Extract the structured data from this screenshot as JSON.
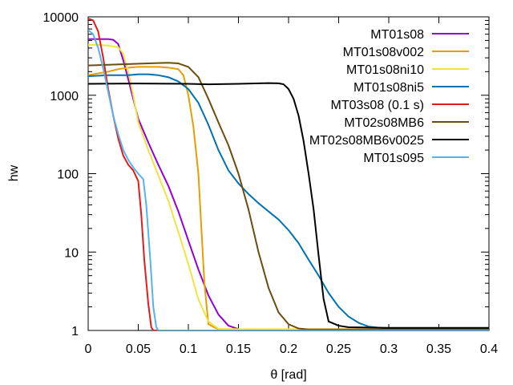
{
  "chart_data": {
    "type": "line",
    "title": "",
    "xlabel": "θ [rad]",
    "ylabel": "hw",
    "xlim": [
      0,
      0.4
    ],
    "ylim": [
      1,
      10000
    ],
    "yscale": "log",
    "grid": false,
    "legend_position": "top-right",
    "x_ticks": [
      0,
      0.05,
      0.1,
      0.15,
      0.2,
      0.25,
      0.3,
      0.35,
      0.4
    ],
    "x_tick_labels": [
      "0",
      "0.05",
      "0.1",
      "0.15",
      "0.2",
      "0.25",
      "0.3",
      "0.35",
      "0.4"
    ],
    "y_ticks": [
      1,
      10,
      100,
      1000,
      10000
    ],
    "y_tick_labels": [
      "1",
      "10",
      "100",
      "1000",
      "10000"
    ],
    "series": [
      {
        "name": "MT01s08",
        "color": "#9400d3",
        "points": [
          [
            0,
            5200
          ],
          [
            0.01,
            5200
          ],
          [
            0.02,
            5200
          ],
          [
            0.025,
            5100
          ],
          [
            0.03,
            4500
          ],
          [
            0.035,
            2800
          ],
          [
            0.04,
            1600
          ],
          [
            0.045,
            900
          ],
          [
            0.05,
            500
          ],
          [
            0.06,
            250
          ],
          [
            0.07,
            130
          ],
          [
            0.08,
            70
          ],
          [
            0.09,
            33
          ],
          [
            0.1,
            14
          ],
          [
            0.11,
            6
          ],
          [
            0.12,
            2.8
          ],
          [
            0.13,
            1.6
          ],
          [
            0.14,
            1.15
          ],
          [
            0.15,
            1.04
          ],
          [
            0.2,
            1.03
          ],
          [
            0.4,
            1.03
          ]
        ]
      },
      {
        "name": "MT01s08v002",
        "color": "#e69f00",
        "points": [
          [
            0,
            1800
          ],
          [
            0.01,
            1900
          ],
          [
            0.02,
            2000
          ],
          [
            0.03,
            2150
          ],
          [
            0.04,
            2250
          ],
          [
            0.05,
            2300
          ],
          [
            0.06,
            2300
          ],
          [
            0.07,
            2300
          ],
          [
            0.08,
            2250
          ],
          [
            0.09,
            2150
          ],
          [
            0.095,
            1800
          ],
          [
            0.1,
            1000
          ],
          [
            0.105,
            400
          ],
          [
            0.11,
            100
          ],
          [
            0.113,
            20
          ],
          [
            0.116,
            4
          ],
          [
            0.12,
            1.2
          ],
          [
            0.13,
            1.03
          ],
          [
            0.4,
            1.03
          ]
        ]
      },
      {
        "name": "MT01s08ni10",
        "color": "#f0e442",
        "points": [
          [
            0,
            4400
          ],
          [
            0.01,
            4400
          ],
          [
            0.02,
            4300
          ],
          [
            0.03,
            4100
          ],
          [
            0.035,
            3400
          ],
          [
            0.04,
            2000
          ],
          [
            0.045,
            1000
          ],
          [
            0.05,
            450
          ],
          [
            0.06,
            200
          ],
          [
            0.07,
            95
          ],
          [
            0.08,
            45
          ],
          [
            0.09,
            18
          ],
          [
            0.1,
            7
          ],
          [
            0.11,
            2.5
          ],
          [
            0.12,
            1.3
          ],
          [
            0.13,
            1.05
          ],
          [
            0.15,
            1.04
          ],
          [
            0.4,
            1.04
          ]
        ]
      },
      {
        "name": "MT01s08ni5",
        "color": "#0072b2",
        "points": [
          [
            0,
            1750
          ],
          [
            0.02,
            1800
          ],
          [
            0.04,
            1800
          ],
          [
            0.05,
            1850
          ],
          [
            0.06,
            1850
          ],
          [
            0.07,
            1800
          ],
          [
            0.08,
            1700
          ],
          [
            0.09,
            1500
          ],
          [
            0.1,
            1200
          ],
          [
            0.11,
            800
          ],
          [
            0.12,
            420
          ],
          [
            0.13,
            200
          ],
          [
            0.14,
            110
          ],
          [
            0.15,
            75
          ],
          [
            0.16,
            55
          ],
          [
            0.17,
            42
          ],
          [
            0.18,
            33
          ],
          [
            0.19,
            26
          ],
          [
            0.2,
            19
          ],
          [
            0.21,
            13
          ],
          [
            0.22,
            8
          ],
          [
            0.23,
            5
          ],
          [
            0.24,
            3
          ],
          [
            0.25,
            2
          ],
          [
            0.26,
            1.5
          ],
          [
            0.27,
            1.25
          ],
          [
            0.28,
            1.12
          ],
          [
            0.3,
            1.05
          ],
          [
            0.4,
            1.05
          ]
        ]
      },
      {
        "name": "MT03s08 (0.1 s)",
        "color": "#e41a1c",
        "points": [
          [
            0,
            9500
          ],
          [
            0.005,
            9000
          ],
          [
            0.01,
            6500
          ],
          [
            0.015,
            3000
          ],
          [
            0.02,
            1200
          ],
          [
            0.025,
            550
          ],
          [
            0.03,
            280
          ],
          [
            0.035,
            170
          ],
          [
            0.04,
            130
          ],
          [
            0.045,
            110
          ],
          [
            0.05,
            80
          ],
          [
            0.053,
            30
          ],
          [
            0.056,
            8
          ],
          [
            0.06,
            2.2
          ],
          [
            0.063,
            1.1
          ],
          [
            0.065,
            1.0
          ],
          [
            0.4,
            1.0
          ]
        ]
      },
      {
        "name": "MT02s08MB6",
        "color": "#6b4c11",
        "points": [
          [
            0,
            2400
          ],
          [
            0.02,
            2450
          ],
          [
            0.04,
            2500
          ],
          [
            0.06,
            2550
          ],
          [
            0.08,
            2600
          ],
          [
            0.09,
            2550
          ],
          [
            0.1,
            2300
          ],
          [
            0.11,
            1700
          ],
          [
            0.12,
            900
          ],
          [
            0.13,
            450
          ],
          [
            0.14,
            230
          ],
          [
            0.15,
            100
          ],
          [
            0.16,
            35
          ],
          [
            0.17,
            10
          ],
          [
            0.18,
            3.5
          ],
          [
            0.19,
            1.7
          ],
          [
            0.2,
            1.2
          ],
          [
            0.21,
            1.06
          ],
          [
            0.22,
            1.03
          ],
          [
            0.4,
            1.03
          ]
        ]
      },
      {
        "name": "MT02s08MB6v0025",
        "color": "#000000",
        "points": [
          [
            0,
            1400
          ],
          [
            0.05,
            1410
          ],
          [
            0.1,
            1400
          ],
          [
            0.12,
            1380
          ],
          [
            0.15,
            1400
          ],
          [
            0.18,
            1430
          ],
          [
            0.19,
            1420
          ],
          [
            0.195,
            1380
          ],
          [
            0.2,
            1200
          ],
          [
            0.205,
            900
          ],
          [
            0.21,
            550
          ],
          [
            0.215,
            260
          ],
          [
            0.22,
            100
          ],
          [
            0.225,
            35
          ],
          [
            0.23,
            9
          ],
          [
            0.235,
            2.5
          ],
          [
            0.24,
            1.3
          ],
          [
            0.25,
            1.15
          ],
          [
            0.26,
            1.1
          ],
          [
            0.3,
            1.08
          ],
          [
            0.4,
            1.08
          ]
        ]
      },
      {
        "name": "MT01s095",
        "color": "#56b4e9",
        "points": [
          [
            0,
            6800
          ],
          [
            0.005,
            6000
          ],
          [
            0.01,
            4000
          ],
          [
            0.015,
            2200
          ],
          [
            0.02,
            1100
          ],
          [
            0.025,
            550
          ],
          [
            0.03,
            320
          ],
          [
            0.035,
            200
          ],
          [
            0.04,
            150
          ],
          [
            0.045,
            120
          ],
          [
            0.05,
            100
          ],
          [
            0.055,
            85
          ],
          [
            0.058,
            40
          ],
          [
            0.062,
            8
          ],
          [
            0.065,
            2
          ],
          [
            0.068,
            1.1
          ],
          [
            0.07,
            1.0
          ],
          [
            0.4,
            1.0
          ]
        ]
      }
    ]
  }
}
